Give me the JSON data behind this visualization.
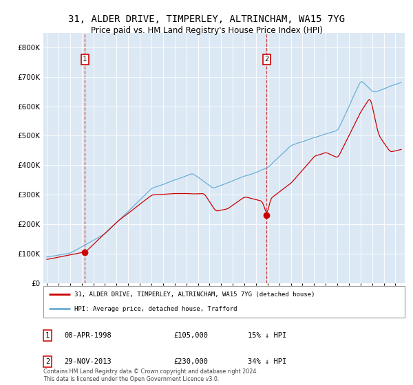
{
  "title": "31, ALDER DRIVE, TIMPERLEY, ALTRINCHAM, WA15 7YG",
  "subtitle": "Price paid vs. HM Land Registry's House Price Index (HPI)",
  "legend_line1": "31, ALDER DRIVE, TIMPERLEY, ALTRINCHAM, WA15 7YG (detached house)",
  "legend_line2": "HPI: Average price, detached house, Trafford",
  "sale1_date": "08-APR-1998",
  "sale1_price": 105000,
  "sale1_note": "15% ↓ HPI",
  "sale2_date": "29-NOV-2013",
  "sale2_price": 230000,
  "sale2_note": "34% ↓ HPI",
  "footer": "Contains HM Land Registry data © Crown copyright and database right 2024.\nThis data is licensed under the Open Government Licence v3.0.",
  "hpi_color": "#6baed6",
  "price_color": "#cc0000",
  "bg_color": "#dce9f5",
  "sale1_year": 1998.27,
  "sale2_year": 2013.91,
  "ylim_max": 850000,
  "xlim_start": 1994.7,
  "xlim_end": 2025.8
}
